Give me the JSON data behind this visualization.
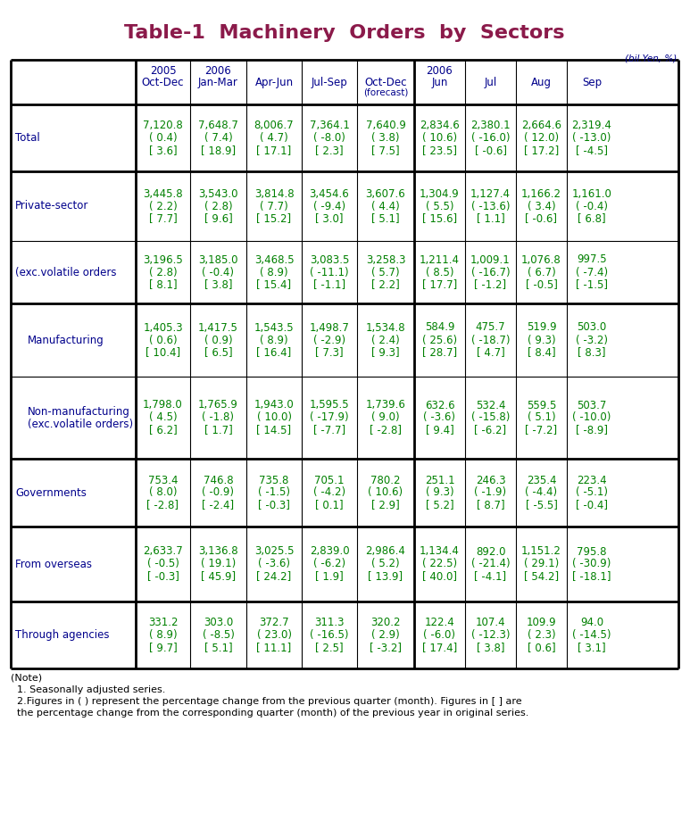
{
  "title": "Table-1  Machinery  Orders  by  Sectors",
  "title_color": "#8B1A4A",
  "unit_label": "(bil.Yen, %)",
  "header_color": "#00008B",
  "data_color": "#008000",
  "label_color": "#00008B",
  "bg_color": "#FFFFFF",
  "rows": [
    {
      "label": "Total",
      "data": [
        [
          "7,120.8",
          "( 0.4)",
          "[ 3.6]"
        ],
        [
          "7,648.7",
          "( 7.4)",
          "[ 18.9]"
        ],
        [
          "8,006.7",
          "( 4.7)",
          "[ 17.1]"
        ],
        [
          "7,364.1",
          "( -8.0)",
          "[ 2.3]"
        ],
        [
          "7,640.9",
          "( 3.8)",
          "[ 7.5]"
        ],
        [
          "2,834.6",
          "( 10.6)",
          "[ 23.5]"
        ],
        [
          "2,380.1",
          "( -16.0)",
          "[ -0.6]"
        ],
        [
          "2,664.6",
          "( 12.0)",
          "[ 17.2]"
        ],
        [
          "2,319.4",
          "( -13.0)",
          "[ -4.5]"
        ]
      ]
    },
    {
      "label": "Private-sector",
      "data": [
        [
          "3,445.8",
          "( 2.2)",
          "[ 7.7]"
        ],
        [
          "3,543.0",
          "( 2.8)",
          "[ 9.6]"
        ],
        [
          "3,814.8",
          "( 7.7)",
          "[ 15.2]"
        ],
        [
          "3,454.6",
          "( -9.4)",
          "[ 3.0]"
        ],
        [
          "3,607.6",
          "( 4.4)",
          "[ 5.1]"
        ],
        [
          "1,304.9",
          "( 5.5)",
          "[ 15.6]"
        ],
        [
          "1,127.4",
          "( -13.6)",
          "[ 1.1]"
        ],
        [
          "1,166.2",
          "( 3.4)",
          "[ -0.6]"
        ],
        [
          "1,161.0",
          "( -0.4)",
          "[ 6.8]"
        ]
      ]
    },
    {
      "label": "(exc.volatile orders",
      "data": [
        [
          "3,196.5",
          "( 2.8)",
          "[ 8.1]"
        ],
        [
          "3,185.0",
          "( -0.4)",
          "[ 3.8]"
        ],
        [
          "3,468.5",
          "( 8.9)",
          "[ 15.4]"
        ],
        [
          "3,083.5",
          "( -11.1)",
          "[ -1.1]"
        ],
        [
          "3,258.3",
          "( 5.7)",
          "[ 2.2]"
        ],
        [
          "1,211.4",
          "( 8.5)",
          "[ 17.7]"
        ],
        [
          "1,009.1",
          "( -16.7)",
          "[ -1.2]"
        ],
        [
          "1,076.8",
          "( 6.7)",
          "[ -0.5]"
        ],
        [
          "997.5",
          "( -7.4)",
          "[ -1.5]"
        ]
      ]
    },
    {
      "label": "Manufacturing",
      "data": [
        [
          "1,405.3",
          "( 0.6)",
          "[ 10.4]"
        ],
        [
          "1,417.5",
          "( 0.9)",
          "[ 6.5]"
        ],
        [
          "1,543.5",
          "( 8.9)",
          "[ 16.4]"
        ],
        [
          "1,498.7",
          "( -2.9)",
          "[ 7.3]"
        ],
        [
          "1,534.8",
          "( 2.4)",
          "[ 9.3]"
        ],
        [
          "584.9",
          "( 25.6)",
          "[ 28.7]"
        ],
        [
          "475.7",
          "( -18.7)",
          "[ 4.7]"
        ],
        [
          "519.9",
          "( 9.3)",
          "[ 8.4]"
        ],
        [
          "503.0",
          "( -3.2)",
          "[ 8.3]"
        ]
      ]
    },
    {
      "label": "Non-manufacturing\n(exc.volatile orders)",
      "data": [
        [
          "1,798.0",
          "( 4.5)",
          "[ 6.2]"
        ],
        [
          "1,765.9",
          "( -1.8)",
          "[ 1.7]"
        ],
        [
          "1,943.0",
          "( 10.0)",
          "[ 14.5]"
        ],
        [
          "1,595.5",
          "( -17.9)",
          "[ -7.7]"
        ],
        [
          "1,739.6",
          "( 9.0)",
          "[ -2.8]"
        ],
        [
          "632.6",
          "( -3.6)",
          "[ 9.4]"
        ],
        [
          "532.4",
          "( -15.8)",
          "[ -6.2]"
        ],
        [
          "559.5",
          "( 5.1)",
          "[ -7.2]"
        ],
        [
          "503.7",
          "( -10.0)",
          "[ -8.9]"
        ]
      ]
    },
    {
      "label": "Governments",
      "data": [
        [
          "753.4",
          "( 8.0)",
          "[ -2.8]"
        ],
        [
          "746.8",
          "( -0.9)",
          "[ -2.4]"
        ],
        [
          "735.8",
          "( -1.5)",
          "[ -0.3]"
        ],
        [
          "705.1",
          "( -4.2)",
          "[ 0.1]"
        ],
        [
          "780.2",
          "( 10.6)",
          "[ 2.9]"
        ],
        [
          "251.1",
          "( 9.3)",
          "[ 5.2]"
        ],
        [
          "246.3",
          "( -1.9)",
          "[ 8.7]"
        ],
        [
          "235.4",
          "( -4.4)",
          "[ -5.5]"
        ],
        [
          "223.4",
          "( -5.1)",
          "[ -0.4]"
        ]
      ]
    },
    {
      "label": "From overseas",
      "data": [
        [
          "2,633.7",
          "( -0.5)",
          "[ -0.3]"
        ],
        [
          "3,136.8",
          "( 19.1)",
          "[ 45.9]"
        ],
        [
          "3,025.5",
          "( -3.6)",
          "[ 24.2]"
        ],
        [
          "2,839.0",
          "( -6.2)",
          "[ 1.9]"
        ],
        [
          "2,986.4",
          "( 5.2)",
          "[ 13.9]"
        ],
        [
          "1,134.4",
          "( 22.5)",
          "[ 40.0]"
        ],
        [
          "892.0",
          "( -21.4)",
          "[ -4.1]"
        ],
        [
          "1,151.2",
          "( 29.1)",
          "[ 54.2]"
        ],
        [
          "795.8",
          "( -30.9)",
          "[ -18.1]"
        ]
      ]
    },
    {
      "label": "Through agencies",
      "data": [
        [
          "331.2",
          "( 8.9)",
          "[ 9.7]"
        ],
        [
          "303.0",
          "( -8.5)",
          "[ 5.1]"
        ],
        [
          "372.7",
          "( 23.0)",
          "[ 11.1]"
        ],
        [
          "311.3",
          "( -16.5)",
          "[ 2.5]"
        ],
        [
          "320.2",
          "( 2.9)",
          "[ -3.2]"
        ],
        [
          "122.4",
          "( -6.0)",
          "[ 17.4]"
        ],
        [
          "107.4",
          "( -12.3)",
          "[ 3.8]"
        ],
        [
          "109.9",
          "( 2.3)",
          "[ 0.6]"
        ],
        [
          "94.0",
          "( -14.5)",
          "[ 3.1]"
        ]
      ]
    }
  ],
  "note_lines": [
    "(Note)",
    "  1. Seasonally adjusted series.",
    "  2.Figures in ( ) represent the percentage change from the previous quarter (month). Figures in [ ] are",
    "  the percentage change from the corresponding quarter (month) of the previous year in original series."
  ]
}
